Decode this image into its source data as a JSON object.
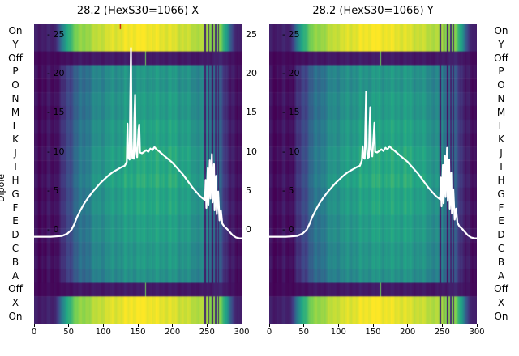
{
  "figure": {
    "background": "#ffffff"
  },
  "axes": {
    "x_ticks": [
      0,
      50,
      100,
      150,
      200,
      250,
      300
    ],
    "x_max": 300,
    "y_inner_tick_labels": [
      "- 25",
      "- 20",
      "- 15",
      "- 10",
      "- 5",
      "- 0"
    ],
    "y_inner_tick_values": [
      25,
      20,
      15,
      10,
      5,
      0
    ],
    "y_right_outer_labels": [
      "25",
      "20",
      "15",
      "10",
      "5",
      "0"
    ],
    "row_labels": [
      "On",
      "Y",
      "Off",
      "P",
      "O",
      "N",
      "M",
      "L",
      "K",
      "J",
      "I",
      "H",
      "G",
      "F",
      "E",
      "D",
      "C",
      "B",
      "A",
      "Off",
      "X",
      "On"
    ],
    "ylabel_left": "Dipole"
  },
  "heatmap": {
    "bands": [
      {
        "rowStart": 0,
        "rowEnd": 1,
        "type": "bright"
      },
      {
        "rowStart": 2,
        "rowEnd": 2,
        "type": "dark"
      },
      {
        "rowStart": 3,
        "rowEnd": 18,
        "type": "main"
      },
      {
        "rowStart": 19,
        "rowEnd": 19,
        "type": "dark"
      },
      {
        "rowStart": 20,
        "rowEnd": 21,
        "type": "bright"
      }
    ],
    "profiles": {
      "main": [
        [
          0,
          0.04
        ],
        [
          30,
          0.05
        ],
        [
          45,
          0.18
        ],
        [
          60,
          0.36
        ],
        [
          90,
          0.52
        ],
        [
          120,
          0.58
        ],
        [
          150,
          0.62
        ],
        [
          200,
          0.62
        ],
        [
          230,
          0.56
        ],
        [
          255,
          0.45
        ],
        [
          268,
          0.3
        ],
        [
          278,
          0.15
        ],
        [
          288,
          0.05
        ],
        [
          300,
          0.04
        ]
      ],
      "bright": [
        [
          0,
          0.08
        ],
        [
          30,
          0.1
        ],
        [
          45,
          0.55
        ],
        [
          60,
          0.8
        ],
        [
          100,
          0.93
        ],
        [
          150,
          1.0
        ],
        [
          200,
          0.95
        ],
        [
          240,
          0.88
        ],
        [
          268,
          0.8
        ],
        [
          278,
          0.55
        ],
        [
          288,
          0.12
        ],
        [
          300,
          0.08
        ]
      ],
      "dark": [
        [
          0,
          0.02
        ],
        [
          40,
          0.03
        ],
        [
          60,
          0.06
        ],
        [
          150,
          0.08
        ],
        [
          240,
          0.06
        ],
        [
          270,
          0.1
        ],
        [
          290,
          0.03
        ],
        [
          300,
          0.02
        ]
      ]
    },
    "streaks": [
      {
        "x": 247,
        "w": 2.0,
        "t": 0.1,
        "scope": "all"
      },
      {
        "x": 252,
        "w": 1.5,
        "t": 0.12,
        "scope": "all"
      },
      {
        "x": 257,
        "w": 2.0,
        "t": 0.08,
        "scope": "all"
      },
      {
        "x": 262,
        "w": 1.5,
        "t": 0.12,
        "scope": "all"
      },
      {
        "x": 266,
        "w": 1.5,
        "t": 0.1,
        "scope": "all"
      },
      {
        "x": 161,
        "w": 1.2,
        "t": 0.78,
        "scope": "dark"
      }
    ],
    "red_tick": {
      "panel_index": 0,
      "x": 124,
      "height": 6,
      "color": "#cc0000"
    },
    "colormap": [
      [
        0,
        [
          68,
          1,
          84
        ]
      ],
      [
        0.2,
        [
          65,
          68,
          135
        ]
      ],
      [
        0.4,
        [
          42,
          120,
          142
        ]
      ],
      [
        0.6,
        [
          34,
          168,
          132
        ]
      ],
      [
        0.8,
        [
          122,
          209,
          81
        ]
      ],
      [
        1,
        [
          253,
          231,
          37
        ]
      ]
    ]
  },
  "chart_data": [
    {
      "type": "heatmap",
      "title": "28.2 (HexS30=1066) X",
      "x_axis": {
        "ticks": [
          0,
          50,
          100,
          150,
          200,
          250,
          300
        ],
        "range": [
          0,
          300
        ]
      },
      "value_axis": {
        "ticks": [
          25,
          20,
          15,
          10,
          5,
          0
        ],
        "range": [
          -2,
          26
        ]
      },
      "rows_note": "row categories shared, see axes.row_labels",
      "overlay_line": {
        "name": "beam-profile-x",
        "color": "#ffffff",
        "points": [
          [
            0,
            -1
          ],
          [
            24,
            -1
          ],
          [
            40,
            -0.9
          ],
          [
            48,
            -0.6
          ],
          [
            54,
            -0.1
          ],
          [
            58,
            0.6
          ],
          [
            62,
            1.5
          ],
          [
            67,
            2.4
          ],
          [
            72,
            3.2
          ],
          [
            78,
            4.0
          ],
          [
            84,
            4.7
          ],
          [
            90,
            5.3
          ],
          [
            96,
            5.9
          ],
          [
            102,
            6.4
          ],
          [
            108,
            6.9
          ],
          [
            114,
            7.3
          ],
          [
            120,
            7.6
          ],
          [
            126,
            7.9
          ],
          [
            131,
            8.1
          ],
          [
            134,
            8.6
          ],
          [
            135,
            13.5
          ],
          [
            136,
            9.2
          ],
          [
            138,
            8.9
          ],
          [
            139,
            16.5
          ],
          [
            140,
            23.2
          ],
          [
            141,
            11.5
          ],
          [
            142,
            9.1
          ],
          [
            144,
            9.0
          ],
          [
            145,
            14.2
          ],
          [
            146,
            17.2
          ],
          [
            147,
            10.5
          ],
          [
            149,
            9.2
          ],
          [
            151,
            12.8
          ],
          [
            152,
            13.4
          ],
          [
            153,
            9.8
          ],
          [
            156,
            9.7
          ],
          [
            159,
            9.9
          ],
          [
            162,
            10.1
          ],
          [
            165,
            9.9
          ],
          [
            168,
            10.3
          ],
          [
            171,
            10.1
          ],
          [
            174,
            10.5
          ],
          [
            177,
            10.2
          ],
          [
            180,
            10.0
          ],
          [
            184,
            9.7
          ],
          [
            188,
            9.4
          ],
          [
            192,
            9.1
          ],
          [
            196,
            8.8
          ],
          [
            200,
            8.5
          ],
          [
            205,
            8.0
          ],
          [
            210,
            7.5
          ],
          [
            215,
            7.0
          ],
          [
            220,
            6.4
          ],
          [
            225,
            5.8
          ],
          [
            230,
            5.2
          ],
          [
            235,
            4.7
          ],
          [
            240,
            4.2
          ],
          [
            244,
            3.9
          ],
          [
            247,
            3.7
          ],
          [
            248,
            6.3
          ],
          [
            249,
            2.7
          ],
          [
            251,
            7.8
          ],
          [
            252,
            3.1
          ],
          [
            254,
            8.8
          ],
          [
            255,
            3.9
          ],
          [
            257,
            9.6
          ],
          [
            258,
            3.4
          ],
          [
            260,
            8.3
          ],
          [
            261,
            2.4
          ],
          [
            263,
            6.8
          ],
          [
            264,
            1.9
          ],
          [
            266,
            4.8
          ],
          [
            268,
            1.1
          ],
          [
            270,
            2.4
          ],
          [
            272,
            0.7
          ],
          [
            275,
            0.3
          ],
          [
            279,
            0.0
          ],
          [
            283,
            -0.4
          ],
          [
            287,
            -0.8
          ],
          [
            292,
            -1.1
          ],
          [
            297,
            -1.2
          ],
          [
            300,
            -1.2
          ]
        ]
      }
    },
    {
      "type": "heatmap",
      "title": "28.2 (HexS30=1066) Y",
      "x_axis": {
        "ticks": [
          0,
          50,
          100,
          150,
          200,
          250,
          300
        ],
        "range": [
          0,
          300
        ]
      },
      "value_axis": {
        "ticks": [
          25,
          20,
          15,
          10,
          5,
          0
        ],
        "range": [
          -2,
          26
        ]
      },
      "rows_note": "row categories shared, see axes.row_labels",
      "overlay_line": {
        "name": "beam-profile-y",
        "color": "#ffffff",
        "points": [
          [
            0,
            -1
          ],
          [
            24,
            -1
          ],
          [
            40,
            -0.9
          ],
          [
            48,
            -0.6
          ],
          [
            54,
            -0.1
          ],
          [
            58,
            0.6
          ],
          [
            62,
            1.5
          ],
          [
            67,
            2.4
          ],
          [
            72,
            3.2
          ],
          [
            78,
            4.0
          ],
          [
            84,
            4.7
          ],
          [
            90,
            5.3
          ],
          [
            96,
            5.9
          ],
          [
            102,
            6.4
          ],
          [
            108,
            6.9
          ],
          [
            114,
            7.3
          ],
          [
            120,
            7.6
          ],
          [
            126,
            7.9
          ],
          [
            131,
            8.1
          ],
          [
            134,
            8.8
          ],
          [
            135,
            10.6
          ],
          [
            136,
            9.2
          ],
          [
            138,
            9.0
          ],
          [
            139,
            13.2
          ],
          [
            140,
            17.6
          ],
          [
            141,
            10.5
          ],
          [
            142,
            9.1
          ],
          [
            144,
            9.2
          ],
          [
            145,
            13.0
          ],
          [
            146,
            15.6
          ],
          [
            147,
            10.2
          ],
          [
            149,
            9.3
          ],
          [
            151,
            12.2
          ],
          [
            152,
            13.6
          ],
          [
            153,
            9.9
          ],
          [
            156,
            9.8
          ],
          [
            159,
            10.0
          ],
          [
            162,
            10.2
          ],
          [
            165,
            10.0
          ],
          [
            168,
            10.4
          ],
          [
            171,
            10.2
          ],
          [
            174,
            10.6
          ],
          [
            177,
            10.3
          ],
          [
            180,
            10.1
          ],
          [
            184,
            9.8
          ],
          [
            188,
            9.5
          ],
          [
            192,
            9.2
          ],
          [
            196,
            8.9
          ],
          [
            200,
            8.6
          ],
          [
            205,
            8.1
          ],
          [
            210,
            7.6
          ],
          [
            215,
            7.1
          ],
          [
            220,
            6.5
          ],
          [
            225,
            5.9
          ],
          [
            230,
            5.3
          ],
          [
            235,
            4.8
          ],
          [
            240,
            4.3
          ],
          [
            244,
            4.0
          ],
          [
            247,
            3.8
          ],
          [
            248,
            6.6
          ],
          [
            249,
            2.9
          ],
          [
            251,
            8.2
          ],
          [
            252,
            3.3
          ],
          [
            254,
            9.4
          ],
          [
            255,
            4.1
          ],
          [
            257,
            10.4
          ],
          [
            258,
            3.6
          ],
          [
            260,
            8.9
          ],
          [
            261,
            2.6
          ],
          [
            263,
            7.2
          ],
          [
            264,
            2.0
          ],
          [
            266,
            5.1
          ],
          [
            268,
            1.2
          ],
          [
            270,
            2.6
          ],
          [
            272,
            0.8
          ],
          [
            275,
            0.3
          ],
          [
            279,
            0.0
          ],
          [
            283,
            -0.4
          ],
          [
            287,
            -0.8
          ],
          [
            292,
            -1.1
          ],
          [
            297,
            -1.2
          ],
          [
            300,
            -1.2
          ]
        ]
      }
    }
  ]
}
